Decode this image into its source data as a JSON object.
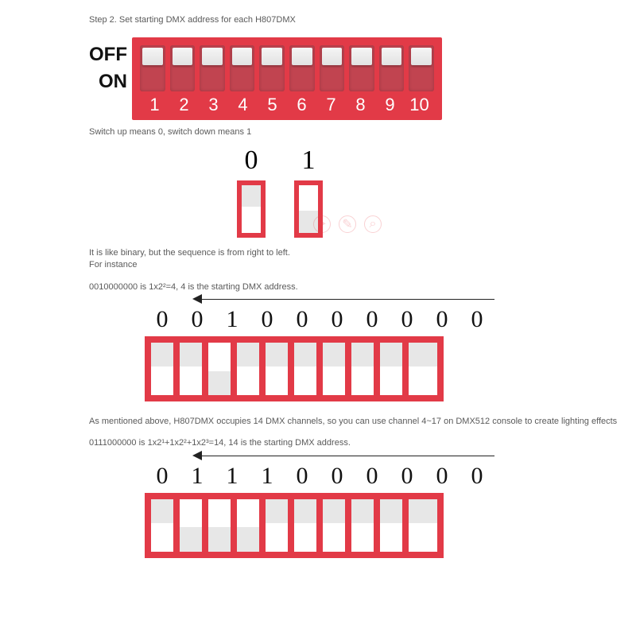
{
  "colors": {
    "red": "#e23a47",
    "slot": "#c14450",
    "knob": "#ececec",
    "text": "#5a5a5a"
  },
  "heading": "Step 2. Set starting DMX address for each H807DMX",
  "dip": {
    "off": "OFF",
    "on": "ON",
    "count": 10,
    "numbers": [
      "1",
      "2",
      "3",
      "4",
      "5",
      "6",
      "7",
      "8",
      "9",
      "10"
    ],
    "positions": [
      "up",
      "up",
      "up",
      "up",
      "up",
      "up",
      "up",
      "up",
      "up",
      "up"
    ]
  },
  "legend_text": "Switch up means 0, switch down means 1",
  "legend": {
    "left": {
      "digit": "0",
      "pos": "up"
    },
    "right": {
      "digit": "1",
      "pos": "down"
    }
  },
  "para1_line1": "It is like binary, but the sequence is from right to left.",
  "para1_line2": "For instance",
  "para1_line3": "0010000000 is 1x2²=4, 4 is the starting DMX address.",
  "example1": {
    "bits": [
      "0",
      "0",
      "1",
      "0",
      "0",
      "0",
      "0",
      "0",
      "0",
      "0"
    ],
    "positions": [
      "up",
      "up",
      "down",
      "up",
      "up",
      "up",
      "up",
      "up",
      "up",
      "up"
    ]
  },
  "para2_line1": "As mentioned above, H807DMX occupies 14 DMX channels, so you can use channel 4~17 on DMX512 console to create lighting effects",
  "para2_line2": "0111000000 is 1x2¹+1x2²+1x2³=14, 14 is the starting DMX address.",
  "example2": {
    "bits": [
      "0",
      "1",
      "1",
      "1",
      "0",
      "0",
      "0",
      "0",
      "0",
      "0"
    ],
    "positions": [
      "up",
      "down",
      "down",
      "down",
      "up",
      "up",
      "up",
      "up",
      "up",
      "up"
    ]
  }
}
